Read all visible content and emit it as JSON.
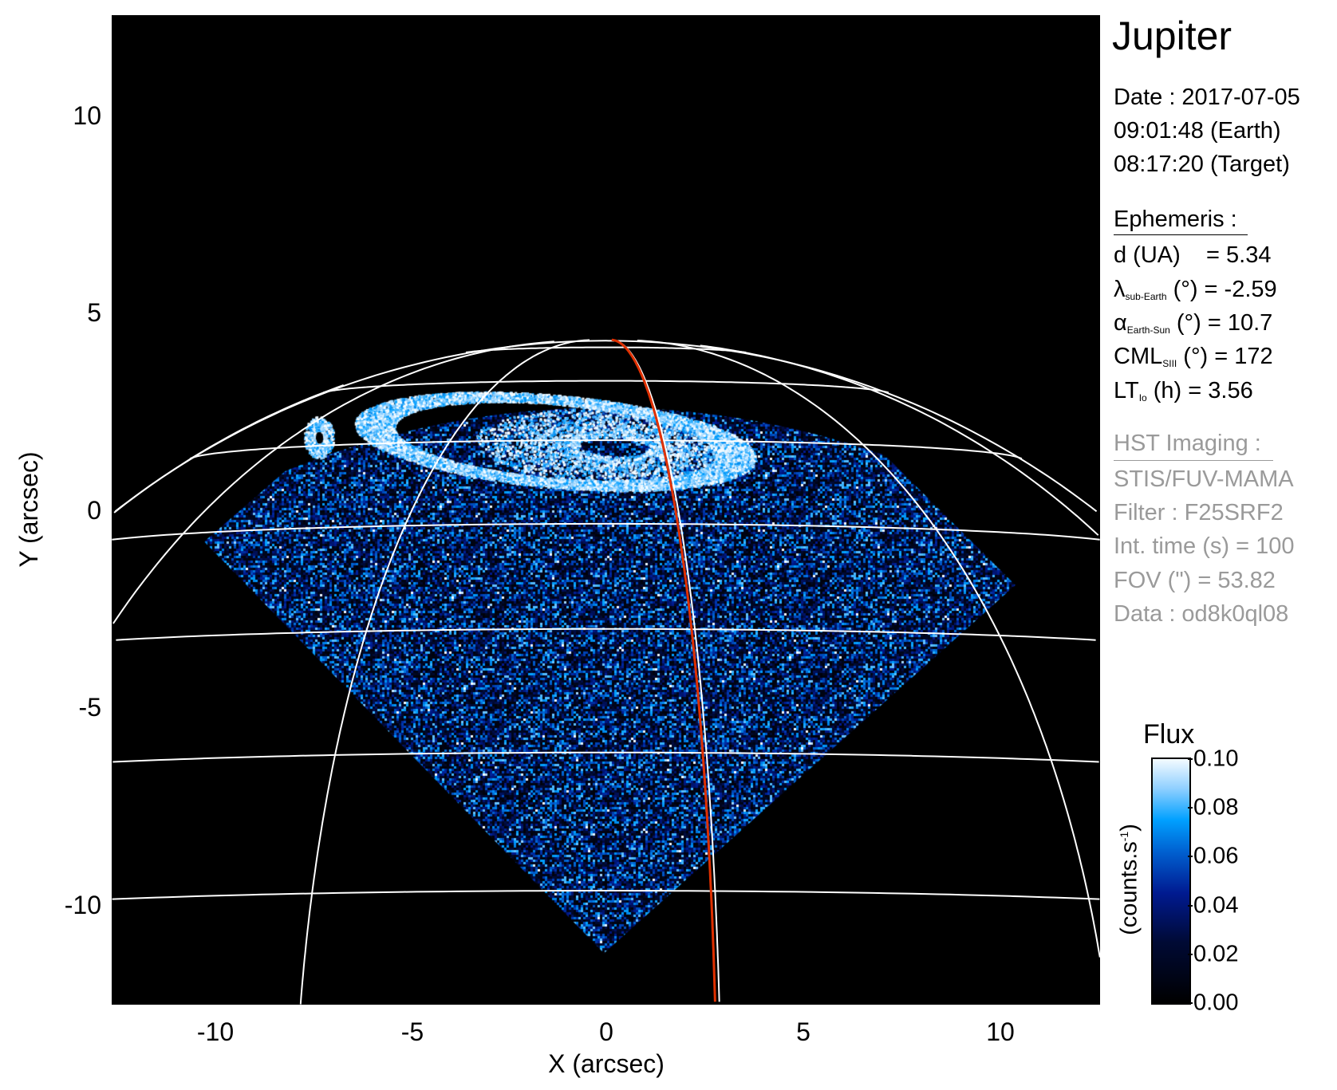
{
  "chart_data": {
    "type": "heatmap",
    "title": "Jupiter",
    "xlabel": "X (arcsec)",
    "ylabel": "Y (arcsec)",
    "xlim": [
      -12.55,
      12.55
    ],
    "ylim": [
      -12.5,
      12.5
    ],
    "xticks": [
      "-10",
      "-5",
      "0",
      "5",
      "10"
    ],
    "yticks": [
      "10",
      "5",
      "0",
      "-5",
      "-10"
    ],
    "xtick_values": [
      -10,
      -5,
      0,
      5,
      10
    ],
    "ytick_values": [
      10,
      5,
      0,
      -5,
      -10
    ],
    "grid": "planetographic latitude/longitude grid (white)",
    "highlight_meridian_color": "#e03000",
    "colorbar": {
      "title": "Flux",
      "label": "(counts.s",
      "label_sup": "-1",
      "label_end": ")",
      "ticks": [
        "0.10",
        "0.08",
        "0.06",
        "0.04",
        "0.02",
        "0.00"
      ],
      "tick_values": [
        0.1,
        0.08,
        0.06,
        0.04,
        0.02,
        0.0
      ],
      "range": [
        0.0,
        0.1
      ],
      "colormap": [
        "#000000",
        "#001a90",
        "#00a0ff",
        "#ffffff"
      ]
    }
  },
  "info": {
    "date": "Date : 2017-07-05",
    "time_earth": "09:01:48 (Earth)",
    "time_target": "08:17:20 (Target)",
    "ephemeris_header": "Ephemeris :",
    "d": "d (UA)    = 5.34",
    "lambda_sym": "λ",
    "lambda_sub": "sub-Earth",
    "lambda_rest": " (°) = -2.59",
    "alpha_sym": "α",
    "alpha_sub": "Earth-Sun",
    "alpha_rest": " (°) = 10.7",
    "cml_sym": "CML",
    "cml_sub": "SIII",
    "cml_rest": " (°) = 172",
    "lt_sym": "LT",
    "lt_sub": "Io",
    "lt_rest": " (h) = 3.56",
    "hst_header": "HST Imaging :",
    "instrument": "STIS/FUV-MAMA",
    "filter": "Filter : F25SRF2",
    "int_time": "Int. time (s) = 100",
    "fov": "FOV (\") = 53.82",
    "data": "Data : od8k0ql08"
  }
}
